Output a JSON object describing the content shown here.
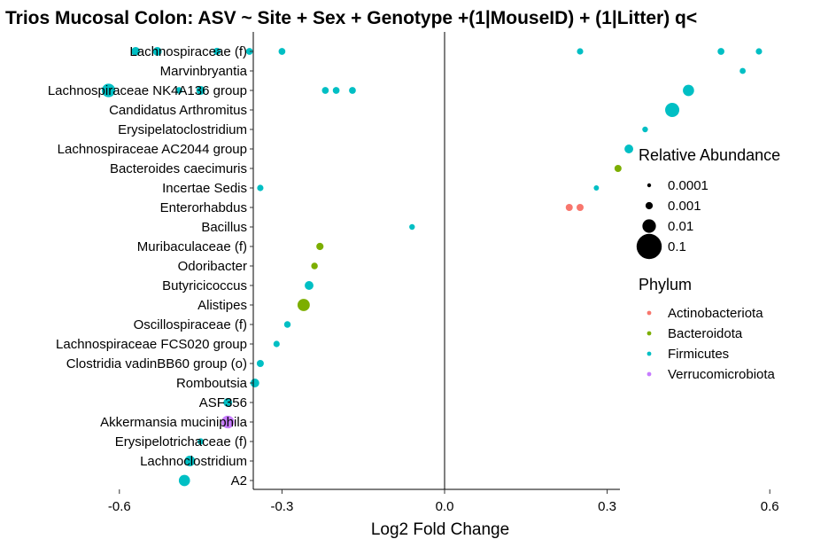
{
  "chart_data": {
    "type": "scatter",
    "title": "Trios Mucosal Colon: ASV ~ Site + Sex + Genotype +(1|MouseID) + (1|Litter) q<",
    "xlabel": "Log2 Fold Change",
    "ylabel": "",
    "xlim": [
      -0.65,
      0.65
    ],
    "xticks": [
      -0.6,
      -0.3,
      0.0,
      0.3,
      0.6
    ],
    "xtick_labels": [
      "-0.6",
      "-0.3",
      "0.0",
      "0.3",
      "0.6"
    ],
    "reference_line_x": 0.0,
    "grid": false,
    "categories": [
      "Lachnospiraceae (f)",
      "Marvinbryantia",
      "Lachnospiraceae NK4A136 group",
      "Candidatus Arthromitus",
      "Erysipelatoclostridium",
      "Lachnospiraceae AC2044 group",
      "Bacteroides caecimuris",
      "Incertae Sedis",
      "Enterorhabdus",
      "Bacillus",
      "Muribaculaceae (f)",
      "Odoribacter",
      "Butyricicoccus",
      "Alistipes",
      "Oscillospiraceae (f)",
      "Lachnospiraceae FCS020 group",
      "Clostridia vadinBB60 group (o)",
      "Romboutsia",
      "ASF356",
      "Akkermansia muciniphila",
      "Erysipelotrichaceae (f)",
      "Lachnoclostridium",
      "A2"
    ],
    "points": [
      {
        "category": "Lachnospiraceae (f)",
        "x": -0.57,
        "abundance": 0.002,
        "phylum": "Firmicutes"
      },
      {
        "category": "Lachnospiraceae (f)",
        "x": -0.53,
        "abundance": 0.002,
        "phylum": "Firmicutes"
      },
      {
        "category": "Lachnospiraceae (f)",
        "x": -0.42,
        "abundance": 0.001,
        "phylum": "Firmicutes"
      },
      {
        "category": "Lachnospiraceae (f)",
        "x": -0.36,
        "abundance": 0.0008,
        "phylum": "Firmicutes"
      },
      {
        "category": "Lachnospiraceae (f)",
        "x": -0.3,
        "abundance": 0.0008,
        "phylum": "Firmicutes"
      },
      {
        "category": "Lachnospiraceae (f)",
        "x": 0.25,
        "abundance": 0.0006,
        "phylum": "Firmicutes"
      },
      {
        "category": "Lachnospiraceae (f)",
        "x": 0.51,
        "abundance": 0.0008,
        "phylum": "Firmicutes"
      },
      {
        "category": "Lachnospiraceae (f)",
        "x": 0.58,
        "abundance": 0.0006,
        "phylum": "Firmicutes"
      },
      {
        "category": "Marvinbryantia",
        "x": 0.55,
        "abundance": 0.0005,
        "phylum": "Firmicutes"
      },
      {
        "category": "Lachnospiraceae NK4A136 group",
        "x": -0.62,
        "abundance": 0.01,
        "phylum": "Firmicutes"
      },
      {
        "category": "Lachnospiraceae NK4A136 group",
        "x": -0.49,
        "abundance": 0.0007,
        "phylum": "Firmicutes"
      },
      {
        "category": "Lachnospiraceae NK4A136 group",
        "x": -0.45,
        "abundance": 0.002,
        "phylum": "Firmicutes"
      },
      {
        "category": "Lachnospiraceae NK4A136 group",
        "x": -0.22,
        "abundance": 0.0008,
        "phylum": "Firmicutes"
      },
      {
        "category": "Lachnospiraceae NK4A136 group",
        "x": -0.2,
        "abundance": 0.0008,
        "phylum": "Firmicutes"
      },
      {
        "category": "Lachnospiraceae NK4A136 group",
        "x": -0.17,
        "abundance": 0.0008,
        "phylum": "Firmicutes"
      },
      {
        "category": "Lachnospiraceae NK4A136 group",
        "x": 0.45,
        "abundance": 0.005,
        "phylum": "Firmicutes"
      },
      {
        "category": "Candidatus Arthromitus",
        "x": 0.42,
        "abundance": 0.012,
        "phylum": "Firmicutes"
      },
      {
        "category": "Erysipelatoclostridium",
        "x": 0.37,
        "abundance": 0.0004,
        "phylum": "Firmicutes"
      },
      {
        "category": "Lachnospiraceae AC2044 group",
        "x": 0.34,
        "abundance": 0.002,
        "phylum": "Firmicutes"
      },
      {
        "category": "Bacteroides caecimuris",
        "x": 0.32,
        "abundance": 0.0009,
        "phylum": "Bacteroidota"
      },
      {
        "category": "Incertae Sedis",
        "x": -0.34,
        "abundance": 0.0006,
        "phylum": "Firmicutes"
      },
      {
        "category": "Incertae Sedis",
        "x": 0.28,
        "abundance": 0.0003,
        "phylum": "Firmicutes"
      },
      {
        "category": "Enterorhabdus",
        "x": 0.23,
        "abundance": 0.0009,
        "phylum": "Actinobacteriota"
      },
      {
        "category": "Enterorhabdus",
        "x": 0.25,
        "abundance": 0.0009,
        "phylum": "Actinobacteriota"
      },
      {
        "category": "Bacillus",
        "x": -0.06,
        "abundance": 0.0004,
        "phylum": "Firmicutes"
      },
      {
        "category": "Muribaculaceae (f)",
        "x": -0.23,
        "abundance": 0.001,
        "phylum": "Bacteroidota"
      },
      {
        "category": "Odoribacter",
        "x": -0.24,
        "abundance": 0.0007,
        "phylum": "Bacteroidota"
      },
      {
        "category": "Butyricicoccus",
        "x": -0.25,
        "abundance": 0.002,
        "phylum": "Firmicutes"
      },
      {
        "category": "Alistipes",
        "x": -0.26,
        "abundance": 0.007,
        "phylum": "Bacteroidota"
      },
      {
        "category": "Oscillospiraceae (f)",
        "x": -0.29,
        "abundance": 0.0007,
        "phylum": "Firmicutes"
      },
      {
        "category": "Lachnospiraceae FCS020 group",
        "x": -0.31,
        "abundance": 0.0006,
        "phylum": "Firmicutes"
      },
      {
        "category": "Clostridia vadinBB60 group (o)",
        "x": -0.34,
        "abundance": 0.0009,
        "phylum": "Firmicutes"
      },
      {
        "category": "Romboutsia",
        "x": -0.35,
        "abundance": 0.002,
        "phylum": "Firmicutes"
      },
      {
        "category": "ASF356",
        "x": -0.4,
        "abundance": 0.002,
        "phylum": "Firmicutes"
      },
      {
        "category": "Akkermansia muciniphila",
        "x": -0.4,
        "abundance": 0.008,
        "phylum": "Verrucomicrobiota"
      },
      {
        "category": "Erysipelotrichaceae (f)",
        "x": -0.45,
        "abundance": 0.0006,
        "phylum": "Firmicutes"
      },
      {
        "category": "Lachnoclostridium",
        "x": -0.47,
        "abundance": 0.004,
        "phylum": "Firmicutes"
      },
      {
        "category": "A2",
        "x": -0.48,
        "abundance": 0.005,
        "phylum": "Firmicutes"
      }
    ],
    "legend": {
      "placement": "right",
      "size": {
        "title": "Relative Abundance",
        "entries": [
          {
            "label": "0.0001",
            "value": 0.0001
          },
          {
            "label": "0.001",
            "value": 0.001
          },
          {
            "label": "0.01",
            "value": 0.01
          },
          {
            "label": "0.1",
            "value": 0.1
          }
        ]
      },
      "color": {
        "title": "Phylum",
        "entries": [
          {
            "label": "Actinobacteriota",
            "color": "#F8766D"
          },
          {
            "label": "Bacteroidota",
            "color": "#7CAE00"
          },
          {
            "label": "Firmicutes",
            "color": "#00BFC4"
          },
          {
            "label": "Verrucomicrobiota",
            "color": "#C77CFF"
          }
        ]
      }
    }
  }
}
